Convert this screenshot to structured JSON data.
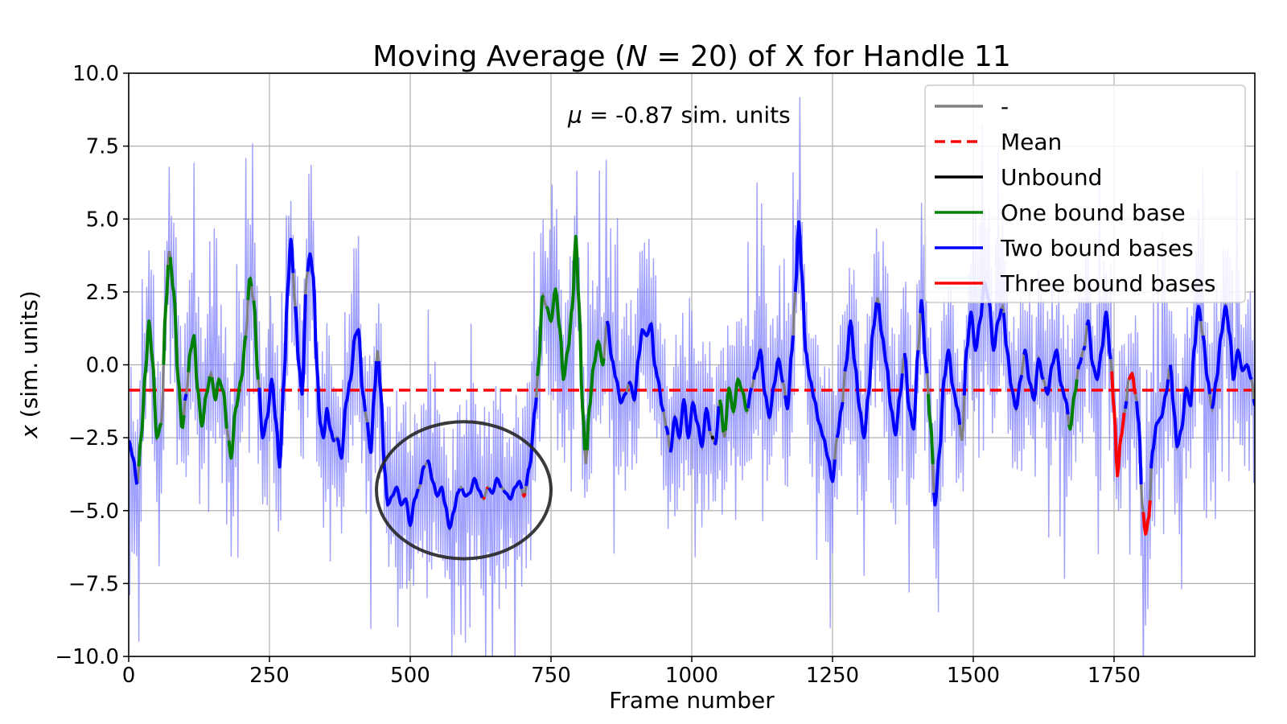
{
  "chart_data": {
    "type": "line",
    "title": "Moving Average (N = 20) of X for Handle 11",
    "title_parts": {
      "prefix": "Moving Average (",
      "italic": "N",
      "suffix": " = 20) of X for Handle 11"
    },
    "xlabel": "Frame number",
    "ylabel": "x (sim. units)",
    "ylabel_parts": {
      "italic": "x",
      "suffix": " (sim. units)"
    },
    "xlim": [
      0,
      2000
    ],
    "ylim": [
      -10,
      10
    ],
    "x_ticks": [
      0,
      250,
      500,
      750,
      1000,
      1250,
      1500,
      1750
    ],
    "x_tick_labels": [
      "0",
      "250",
      "500",
      "750",
      "1000",
      "1250",
      "1500",
      "1750"
    ],
    "y_ticks": [
      -10,
      -7.5,
      -5,
      -2.5,
      0,
      2.5,
      5,
      7.5,
      10
    ],
    "y_tick_labels": [
      "−10.0",
      "−7.5",
      "−5.0",
      "−2.5",
      "0.0",
      "2.5",
      "5.0",
      "7.5",
      "10.0"
    ],
    "grid": true,
    "legend_position": "top-right",
    "mean": -0.87,
    "annotation": {
      "prefix": "μ",
      "text": " = -0.87 sim. units",
      "x": 780,
      "y": 8.3
    },
    "highlight_ellipse": {
      "cx": 595,
      "cy": -4.3,
      "rx": 155,
      "ry": 2.35
    },
    "colors": {
      "raw_band": "#8080ff",
      "connector": "#808080",
      "mean": "#ff0000",
      "unbound": "#000000",
      "one_bound": "#008000",
      "two_bound": "#0000ff",
      "three_bound": "#ff0000"
    },
    "legend": [
      {
        "label": "-",
        "color": "#808080",
        "style": "solid"
      },
      {
        "label": "Mean",
        "color": "#ff0000",
        "style": "dashed"
      },
      {
        "label": "Unbound",
        "color": "#000000",
        "style": "solid"
      },
      {
        "label": "One bound base",
        "color": "#008000",
        "style": "solid"
      },
      {
        "label": "Two bound bases",
        "color": "#0000ff",
        "style": "solid"
      },
      {
        "label": "Three bound bases",
        "color": "#ff0000",
        "style": "solid"
      }
    ],
    "moving_average_keypoints": [
      [
        0,
        -2.6
      ],
      [
        8,
        -3.2
      ],
      [
        15,
        -4.1
      ],
      [
        22,
        -2.5
      ],
      [
        30,
        -0.2
      ],
      [
        36,
        1.5
      ],
      [
        42,
        0.2
      ],
      [
        50,
        -2.5
      ],
      [
        58,
        -2.0
      ],
      [
        66,
        2.0
      ],
      [
        72,
        3.9
      ],
      [
        80,
        2.5
      ],
      [
        88,
        -0.5
      ],
      [
        95,
        -2.2
      ],
      [
        102,
        -1.0
      ],
      [
        110,
        0.5
      ],
      [
        116,
        1.0
      ],
      [
        122,
        -0.8
      ],
      [
        130,
        -2.1
      ],
      [
        138,
        -1.0
      ],
      [
        146,
        -0.3
      ],
      [
        154,
        -1.2
      ],
      [
        160,
        -0.5
      ],
      [
        168,
        -0.9
      ],
      [
        176,
        -2.4
      ],
      [
        182,
        -3.2
      ],
      [
        190,
        -1.5
      ],
      [
        200,
        -0.5
      ],
      [
        208,
        1.0
      ],
      [
        215,
        3.0
      ],
      [
        222,
        2.2
      ],
      [
        230,
        -0.5
      ],
      [
        238,
        -2.5
      ],
      [
        246,
        -1.8
      ],
      [
        254,
        -0.5
      ],
      [
        262,
        -2.0
      ],
      [
        268,
        -3.5
      ],
      [
        276,
        -0.5
      ],
      [
        282,
        2.5
      ],
      [
        288,
        4.3
      ],
      [
        296,
        2.0
      ],
      [
        302,
        0.0
      ],
      [
        308,
        -1.0
      ],
      [
        316,
        3.0
      ],
      [
        322,
        3.8
      ],
      [
        328,
        3.0
      ],
      [
        334,
        0.0
      ],
      [
        340,
        -2.0
      ],
      [
        346,
        -2.5
      ],
      [
        352,
        -1.5
      ],
      [
        358,
        -2.2
      ],
      [
        364,
        -2.6
      ],
      [
        370,
        -2.5
      ],
      [
        378,
        -3.2
      ],
      [
        386,
        -1.3
      ],
      [
        394,
        -0.5
      ],
      [
        402,
        1.0
      ],
      [
        408,
        1.2
      ],
      [
        416,
        -1.0
      ],
      [
        422,
        -1.8
      ],
      [
        430,
        -3.0
      ],
      [
        436,
        -1.0
      ],
      [
        442,
        0.5
      ],
      [
        448,
        -1.0
      ],
      [
        454,
        -3.5
      ],
      [
        460,
        -4.8
      ],
      [
        468,
        -4.5
      ],
      [
        476,
        -4.2
      ],
      [
        484,
        -4.8
      ],
      [
        492,
        -4.6
      ],
      [
        500,
        -5.5
      ],
      [
        508,
        -4.6
      ],
      [
        516,
        -4.2
      ],
      [
        524,
        -3.5
      ],
      [
        532,
        -3.3
      ],
      [
        540,
        -4.0
      ],
      [
        548,
        -4.5
      ],
      [
        556,
        -4.2
      ],
      [
        562,
        -4.8
      ],
      [
        570,
        -5.6
      ],
      [
        578,
        -5.0
      ],
      [
        584,
        -4.4
      ],
      [
        590,
        -4.2
      ],
      [
        598,
        -4.5
      ],
      [
        606,
        -4.4
      ],
      [
        614,
        -3.9
      ],
      [
        622,
        -4.3
      ],
      [
        630,
        -4.6
      ],
      [
        638,
        -4.2
      ],
      [
        646,
        -4.4
      ],
      [
        654,
        -3.9
      ],
      [
        662,
        -4.2
      ],
      [
        670,
        -4.4
      ],
      [
        678,
        -4.6
      ],
      [
        686,
        -4.2
      ],
      [
        694,
        -4.0
      ],
      [
        702,
        -4.5
      ],
      [
        712,
        -3.5
      ],
      [
        722,
        -1.5
      ],
      [
        728,
        0.0
      ],
      [
        735,
        2.4
      ],
      [
        742,
        2.0
      ],
      [
        750,
        1.5
      ],
      [
        758,
        2.6
      ],
      [
        766,
        1.2
      ],
      [
        772,
        -0.5
      ],
      [
        780,
        0.5
      ],
      [
        788,
        2.0
      ],
      [
        794,
        4.4
      ],
      [
        800,
        2.0
      ],
      [
        806,
        -1.5
      ],
      [
        812,
        -3.4
      ],
      [
        818,
        -1.5
      ],
      [
        826,
        0.0
      ],
      [
        834,
        0.8
      ],
      [
        842,
        0.0
      ],
      [
        850,
        1.5
      ],
      [
        858,
        0.2
      ],
      [
        866,
        -0.5
      ],
      [
        874,
        -1.3
      ],
      [
        882,
        -1.0
      ],
      [
        890,
        -0.6
      ],
      [
        898,
        -1.2
      ],
      [
        906,
        0.3
      ],
      [
        912,
        1.2
      ],
      [
        920,
        1.0
      ],
      [
        928,
        1.4
      ],
      [
        934,
        0.0
      ],
      [
        940,
        -0.5
      ],
      [
        948,
        -1.5
      ],
      [
        956,
        -2.2
      ],
      [
        962,
        -3.0
      ],
      [
        970,
        -1.8
      ],
      [
        978,
        -2.5
      ],
      [
        986,
        -1.2
      ],
      [
        994,
        -2.5
      ],
      [
        1002,
        -1.3
      ],
      [
        1010,
        -2.0
      ],
      [
        1018,
        -2.8
      ],
      [
        1026,
        -1.5
      ],
      [
        1034,
        -2.4
      ],
      [
        1042,
        -2.7
      ],
      [
        1050,
        -1.2
      ],
      [
        1058,
        -2.5
      ],
      [
        1066,
        -0.8
      ],
      [
        1074,
        -1.6
      ],
      [
        1082,
        -0.5
      ],
      [
        1090,
        -0.9
      ],
      [
        1098,
        -1.6
      ],
      [
        1106,
        -0.8
      ],
      [
        1114,
        -0.2
      ],
      [
        1122,
        0.5
      ],
      [
        1130,
        -1.0
      ],
      [
        1138,
        -1.8
      ],
      [
        1146,
        -0.7
      ],
      [
        1154,
        0.2
      ],
      [
        1162,
        -0.6
      ],
      [
        1170,
        -1.5
      ],
      [
        1178,
        0.5
      ],
      [
        1184,
        2.5
      ],
      [
        1190,
        4.9
      ],
      [
        1196,
        3.0
      ],
      [
        1202,
        0.5
      ],
      [
        1210,
        -0.5
      ],
      [
        1218,
        -1.2
      ],
      [
        1226,
        -2.0
      ],
      [
        1234,
        -2.5
      ],
      [
        1242,
        -3.2
      ],
      [
        1250,
        -4.0
      ],
      [
        1258,
        -2.5
      ],
      [
        1266,
        -1.5
      ],
      [
        1274,
        0.0
      ],
      [
        1282,
        1.5
      ],
      [
        1290,
        0.0
      ],
      [
        1298,
        -1.5
      ],
      [
        1306,
        -2.5
      ],
      [
        1314,
        -1.0
      ],
      [
        1322,
        1.2
      ],
      [
        1330,
        2.3
      ],
      [
        1338,
        1.0
      ],
      [
        1346,
        0.0
      ],
      [
        1354,
        -1.5
      ],
      [
        1362,
        -2.4
      ],
      [
        1370,
        -1.0
      ],
      [
        1378,
        0.4
      ],
      [
        1386,
        -1.5
      ],
      [
        1394,
        -2.2
      ],
      [
        1402,
        0.5
      ],
      [
        1408,
        2.2
      ],
      [
        1416,
        0.0
      ],
      [
        1424,
        -2.0
      ],
      [
        1432,
        -4.8
      ],
      [
        1440,
        -3.0
      ],
      [
        1448,
        -0.5
      ],
      [
        1456,
        0.5
      ],
      [
        1464,
        -0.8
      ],
      [
        1472,
        -1.5
      ],
      [
        1480,
        -2.6
      ],
      [
        1488,
        0.5
      ],
      [
        1496,
        1.8
      ],
      [
        1504,
        0.5
      ],
      [
        1512,
        1.5
      ],
      [
        1520,
        2.8
      ],
      [
        1528,
        2.2
      ],
      [
        1536,
        0.5
      ],
      [
        1544,
        1.5
      ],
      [
        1552,
        2.0
      ],
      [
        1560,
        0.5
      ],
      [
        1568,
        -0.8
      ],
      [
        1576,
        -1.5
      ],
      [
        1584,
        -0.5
      ],
      [
        1592,
        0.5
      ],
      [
        1600,
        -0.6
      ],
      [
        1608,
        -1.2
      ],
      [
        1616,
        0.2
      ],
      [
        1624,
        -0.5
      ],
      [
        1632,
        -1.0
      ],
      [
        1640,
        0.0
      ],
      [
        1648,
        0.5
      ],
      [
        1656,
        -0.7
      ],
      [
        1664,
        -1.2
      ],
      [
        1672,
        -2.2
      ],
      [
        1680,
        -1.0
      ],
      [
        1688,
        0.0
      ],
      [
        1696,
        0.5
      ],
      [
        1704,
        1.5
      ],
      [
        1712,
        0.0
      ],
      [
        1720,
        -0.5
      ],
      [
        1728,
        0.5
      ],
      [
        1736,
        1.8
      ],
      [
        1744,
        0.2
      ],
      [
        1750,
        -1.5
      ],
      [
        1756,
        -3.8
      ],
      [
        1762,
        -2.5
      ],
      [
        1770,
        -1.5
      ],
      [
        1776,
        -0.5
      ],
      [
        1782,
        -0.3
      ],
      [
        1788,
        -1.0
      ],
      [
        1794,
        -2.0
      ],
      [
        1800,
        -4.8
      ],
      [
        1806,
        -5.8
      ],
      [
        1812,
        -5.2
      ],
      [
        1818,
        -3.0
      ],
      [
        1826,
        -2.0
      ],
      [
        1834,
        -1.8
      ],
      [
        1842,
        -1.0
      ],
      [
        1850,
        0.0
      ],
      [
        1856,
        -1.5
      ],
      [
        1862,
        -2.8
      ],
      [
        1870,
        -2.2
      ],
      [
        1878,
        -0.8
      ],
      [
        1886,
        -1.4
      ],
      [
        1892,
        0.5
      ],
      [
        1900,
        2.0
      ],
      [
        1908,
        1.0
      ],
      [
        1916,
        -0.5
      ],
      [
        1924,
        -1.5
      ],
      [
        1932,
        -0.5
      ],
      [
        1940,
        1.0
      ],
      [
        1948,
        2.0
      ],
      [
        1956,
        1.0
      ],
      [
        1962,
        -0.5
      ],
      [
        1970,
        0.5
      ],
      [
        1978,
        -0.2
      ],
      [
        1986,
        0.0
      ],
      [
        1994,
        -0.5
      ],
      [
        2000,
        -1.4
      ]
    ],
    "state_segments": [
      {
        "state": "three_bound",
        "range": [
          1745,
          1770
        ]
      },
      {
        "state": "three_bound",
        "range": [
          1775,
          1790
        ]
      },
      {
        "state": "three_bound",
        "range": [
          1800,
          1815
        ]
      },
      {
        "state": "three_bound",
        "range": [
          630,
          640
        ]
      },
      {
        "state": "three_bound",
        "range": [
          700,
          706
        ]
      },
      {
        "state": "one_bound",
        "range": [
          18,
          60
        ]
      },
      {
        "state": "one_bound",
        "range": [
          62,
          100
        ]
      },
      {
        "state": "one_bound",
        "range": [
          103,
          175
        ]
      },
      {
        "state": "one_bound",
        "range": [
          178,
          232
        ]
      },
      {
        "state": "one_bound",
        "range": [
          725,
          850
        ]
      },
      {
        "state": "one_bound",
        "range": [
          1050,
          1100
        ]
      },
      {
        "state": "one_bound",
        "range": [
          1420,
          1430
        ]
      },
      {
        "state": "one_bound",
        "range": [
          1670,
          1685
        ]
      },
      {
        "state": "unbound",
        "range": [
          1035,
          1040
        ]
      }
    ]
  }
}
